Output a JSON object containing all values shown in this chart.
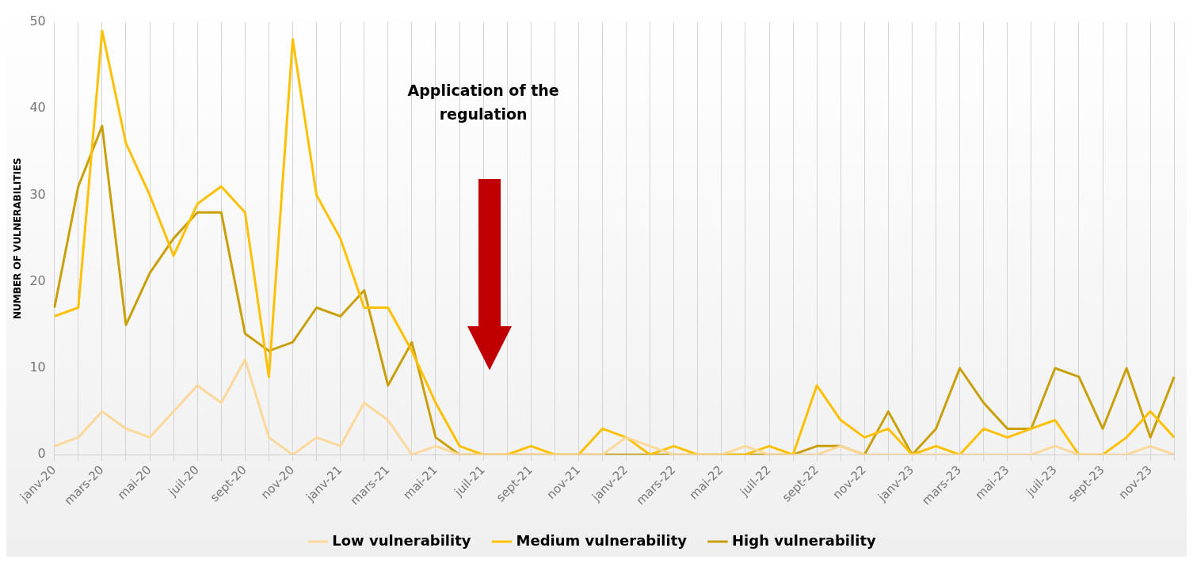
{
  "chart_data": {
    "type": "line",
    "ylabel": "NUMBER OF VULNERABILITIES",
    "categories": [
      "janv-20",
      null,
      "mars-20",
      null,
      "mai-20",
      null,
      "juil-20",
      null,
      "sept-20",
      null,
      "nov-20",
      null,
      "janv-21",
      null,
      "mars-21",
      null,
      "mai-21",
      null,
      "juil-21",
      null,
      "sept-21",
      null,
      "nov-21",
      null,
      "janv-22",
      null,
      "mars-22",
      null,
      "mai-22",
      null,
      "juil-22",
      null,
      "sept-22",
      null,
      "nov-22",
      null,
      "janv-23",
      null,
      "mars-23",
      null,
      "mai-23",
      null,
      "juil-23",
      null,
      "sept-23",
      null,
      "nov-23",
      null
    ],
    "series": [
      {
        "name": "Low vulnerability",
        "color": "#fdd89b",
        "values": [
          1,
          2,
          5,
          3,
          2,
          5,
          8,
          6,
          11,
          2,
          0,
          2,
          1,
          6,
          4,
          0,
          1,
          0,
          0,
          0,
          0,
          0,
          0,
          0,
          2,
          1,
          0,
          0,
          0,
          1,
          0,
          0,
          0,
          1,
          0,
          0,
          0,
          0,
          0,
          0,
          0,
          0,
          1,
          0,
          0,
          0,
          1,
          0
        ]
      },
      {
        "name": "Medium vulnerability",
        "color": "#ffc000",
        "values": [
          16,
          17,
          49,
          36,
          30,
          23,
          29,
          31,
          28,
          9,
          48,
          30,
          25,
          17,
          17,
          12,
          6,
          1,
          0,
          0,
          1,
          0,
          0,
          3,
          2,
          0,
          1,
          0,
          0,
          0,
          1,
          0,
          8,
          4,
          2,
          3,
          0,
          1,
          0,
          3,
          2,
          3,
          4,
          0,
          0,
          2,
          5,
          2
        ]
      },
      {
        "name": "High vulnerability",
        "color": "#c9a00a",
        "values": [
          17,
          31,
          38,
          15,
          21,
          25,
          28,
          28,
          14,
          12,
          13,
          17,
          16,
          19,
          8,
          13,
          2,
          0,
          0,
          0,
          0,
          0,
          0,
          0,
          0,
          0,
          0,
          0,
          0,
          0,
          0,
          0,
          1,
          1,
          0,
          5,
          0,
          3,
          10,
          6,
          3,
          3,
          10,
          9,
          3,
          10,
          2,
          9
        ]
      }
    ],
    "ylim": [
      0,
      50
    ],
    "yticks": [
      0,
      10,
      20,
      30,
      40,
      50
    ],
    "grid": "x",
    "legend": "bottom",
    "marker": "none",
    "line_style": "solid",
    "annotations": [
      "Application of the regulation"
    ]
  }
}
